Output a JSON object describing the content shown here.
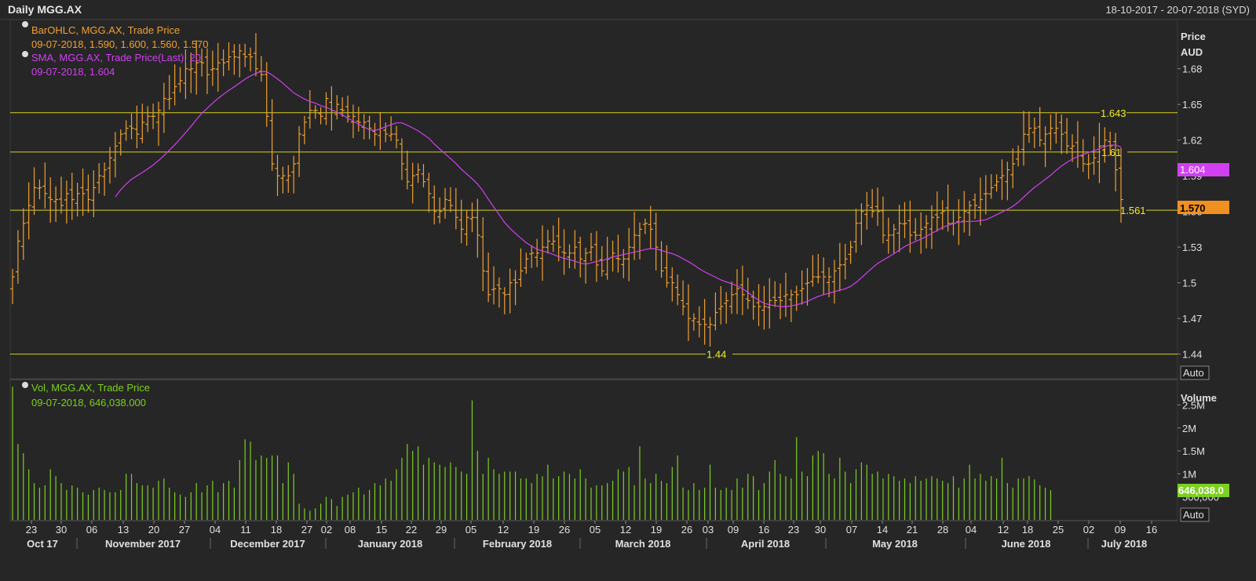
{
  "window": {
    "title": "Daily MGG.AX",
    "range": "18-10-2017 - 20-07-2018 (SYD)"
  },
  "price_panel": {
    "axis_title_1": "Price",
    "axis_title_2": "AUD",
    "auto_label": "Auto",
    "legend": [
      {
        "line1": "BarOHLC, MGG.AX, Trade Price",
        "line2": "09-07-2018, 1.590, 1.600, 1.560, 1.570",
        "color": "#f0a030"
      },
      {
        "line1": "SMA, MGG.AX, Trade Price(Last),  20",
        "line2": "09-07-2018, 1.604",
        "color": "#d040f0"
      }
    ],
    "last_price_tag": "1.570",
    "sma_tag": "1.604",
    "hlines": [
      {
        "value": 1.643,
        "label": "1.643"
      },
      {
        "value": 1.61,
        "label": "1.61"
      },
      {
        "value": 1.561,
        "label": "1.561"
      },
      {
        "value": 1.44,
        "label": "1.44"
      }
    ]
  },
  "volume_panel": {
    "axis_title": "Volume",
    "auto_label": "Auto",
    "legend": {
      "line1": "Vol, MGG.AX, Trade Price",
      "line2": "09-07-2018, 646,038.000",
      "color": "#7cd020"
    },
    "last_tag": "646,038.0",
    "ticks": [
      "2.5M",
      "2M",
      "1.5M",
      "1M",
      "500,000"
    ],
    "tick_values": [
      2500000,
      2000000,
      1500000,
      1000000,
      500000
    ]
  },
  "x_axis": {
    "day_labels": [
      "23",
      "30",
      "06",
      "13",
      "20",
      "27",
      "04",
      "11",
      "18",
      "27",
      "02",
      "08",
      "15",
      "22",
      "29",
      "05",
      "12",
      "19",
      "26",
      "05",
      "12",
      "19",
      "26",
      "03",
      "09",
      "16",
      "23",
      "30",
      "07",
      "14",
      "21",
      "28",
      "04",
      "12",
      "18",
      "25",
      "02",
      "09",
      "16"
    ],
    "month_labels": [
      "Oct 17",
      "November 2017",
      "December 2017",
      "January 2018",
      "February 2018",
      "March 2018",
      "April 2018",
      "May 2018",
      "June 2018",
      "July 2018"
    ]
  },
  "colors": {
    "background": "#262626",
    "grid": "#3a3a3a",
    "bar": "#f0a030",
    "sma": "#d040f0",
    "volume": "#7cd020",
    "hline": "#d8d020",
    "text": "#e0e0e0"
  },
  "chart_data": [
    {
      "type": "ohlc_bar",
      "title": "BarOHLC, MGG.AX, Trade Price",
      "ylabel": "Price AUD",
      "ylim": [
        1.42,
        1.72
      ],
      "yticks": [
        1.44,
        1.47,
        1.5,
        1.53,
        1.56,
        1.59,
        1.62,
        1.65,
        1.68
      ],
      "series": [
        {
          "name": "BarOHLC, MGG.AX, Trade Price",
          "close": [
            1.505,
            1.535,
            1.55,
            1.565,
            1.58,
            1.58,
            1.575,
            1.57,
            1.57,
            1.565,
            1.575,
            1.57,
            1.575,
            1.575,
            1.57,
            1.58,
            1.59,
            1.595,
            1.605,
            1.615,
            1.625,
            1.63,
            1.63,
            1.625,
            1.635,
            1.64,
            1.64,
            1.645,
            1.655,
            1.655,
            1.665,
            1.67,
            1.68,
            1.68,
            1.685,
            1.685,
            1.675,
            1.68,
            1.685,
            1.685,
            1.69,
            1.69,
            1.695,
            1.69,
            1.69,
            1.68,
            1.675,
            1.64,
            1.6,
            1.59,
            1.59,
            1.59,
            1.6,
            1.625,
            1.635,
            1.645,
            1.645,
            1.64,
            1.655,
            1.645,
            1.65,
            1.645,
            1.64,
            1.64,
            1.635,
            1.635,
            1.63,
            1.625,
            1.63,
            1.625,
            1.625,
            1.62,
            1.6,
            1.585,
            1.59,
            1.595,
            1.585,
            1.575,
            1.56,
            1.56,
            1.57,
            1.565,
            1.555,
            1.545,
            1.555,
            1.555,
            1.54,
            1.51,
            1.49,
            1.495,
            1.495,
            1.49,
            1.5,
            1.5,
            1.51,
            1.52,
            1.525,
            1.525,
            1.53,
            1.535,
            1.535,
            1.53,
            1.525,
            1.525,
            1.53,
            1.52,
            1.525,
            1.53,
            1.515,
            1.51,
            1.52,
            1.525,
            1.52,
            1.52,
            1.53,
            1.54,
            1.545,
            1.55,
            1.545,
            1.53,
            1.51,
            1.5,
            1.5,
            1.49,
            1.48,
            1.47,
            1.47,
            1.465,
            1.465,
            1.465,
            1.475,
            1.48,
            1.485,
            1.49,
            1.495,
            1.49,
            1.485,
            1.48,
            1.48,
            1.48,
            1.485,
            1.485,
            1.485,
            1.49,
            1.49,
            1.49,
            1.495,
            1.5,
            1.505,
            1.505,
            1.505,
            1.505,
            1.51,
            1.515,
            1.52,
            1.53,
            1.55,
            1.56,
            1.565,
            1.56,
            1.56,
            1.54,
            1.54,
            1.545,
            1.55,
            1.55,
            1.54,
            1.54,
            1.545,
            1.55,
            1.555,
            1.555,
            1.56,
            1.55,
            1.55,
            1.555,
            1.56,
            1.565,
            1.565,
            1.57,
            1.575,
            1.58,
            1.585,
            1.59,
            1.595,
            1.6,
            1.61,
            1.625,
            1.63,
            1.63,
            1.62,
            1.625,
            1.63,
            1.63,
            1.625,
            1.615,
            1.615,
            1.61,
            1.6,
            1.6,
            1.605,
            1.615,
            1.62,
            1.615,
            1.595,
            1.57
          ]
        },
        {
          "name": "SMA, MGG.AX, Trade Price(Last),  20",
          "note": "20-day simple moving average of close"
        }
      ]
    },
    {
      "type": "bar",
      "title": "Vol, MGG.AX, Trade Price",
      "ylabel": "Volume",
      "ylim": [
        0,
        2900000
      ],
      "series": [
        {
          "name": "Vol, MGG.AX, Trade Price",
          "values": [
            2900000,
            1650000,
            1450000,
            1100000,
            800000,
            700000,
            750000,
            1100000,
            950000,
            800000,
            650000,
            750000,
            700000,
            600000,
            550000,
            650000,
            700000,
            650000,
            600000,
            600000,
            650000,
            1000000,
            1000000,
            800000,
            750000,
            750000,
            700000,
            850000,
            900000,
            700000,
            600000,
            550000,
            500000,
            600000,
            800000,
            600000,
            750000,
            850000,
            600000,
            800000,
            850000,
            700000,
            1300000,
            1750000,
            1700000,
            1300000,
            1400000,
            1350000,
            1400000,
            1400000,
            800000,
            1250000,
            1000000,
            350000,
            250000,
            200000,
            250000,
            350000,
            500000,
            450000,
            300000,
            500000,
            550000,
            600000,
            700000,
            550000,
            650000,
            800000,
            750000,
            900000,
            850000,
            1100000,
            1350000,
            1650000,
            1500000,
            1600000,
            1200000,
            1350000,
            1250000,
            1200000,
            1150000,
            1250000,
            1150000,
            1050000,
            1000000,
            2600000,
            1500000,
            1000000,
            1350000,
            1100000,
            1000000,
            1050000,
            1050000,
            1050000,
            900000,
            900000,
            800000,
            1000000,
            950000,
            1200000,
            900000,
            950000,
            1050000,
            1000000,
            900000,
            1100000,
            900000,
            700000,
            750000,
            750000,
            800000,
            850000,
            1100000,
            1050000,
            1150000,
            750000,
            1600000,
            900000,
            800000,
            1000000,
            850000,
            800000,
            1150000,
            1400000,
            700000,
            650000,
            800000,
            650000,
            700000,
            1200000,
            700000,
            650000,
            700000,
            650000,
            900000,
            700000,
            1000000,
            950000,
            650000,
            800000,
            1050000,
            1300000,
            1000000,
            950000,
            900000,
            1800000,
            1050000,
            950000,
            1400000,
            1500000,
            1450000,
            1000000,
            900000,
            1350000,
            1050000,
            800000,
            1100000,
            1250000,
            1200000,
            1000000,
            1050000,
            900000,
            1000000,
            950000,
            850000,
            900000,
            800000,
            950000,
            850000,
            900000,
            950000,
            900000,
            850000,
            800000,
            950000,
            700000,
            900000,
            1200000,
            900000,
            1000000,
            850000,
            950000,
            900000,
            1350000,
            800000,
            700000,
            900000,
            900000,
            950000,
            880000,
            750000,
            700000,
            646038
          ]
        }
      ]
    }
  ]
}
